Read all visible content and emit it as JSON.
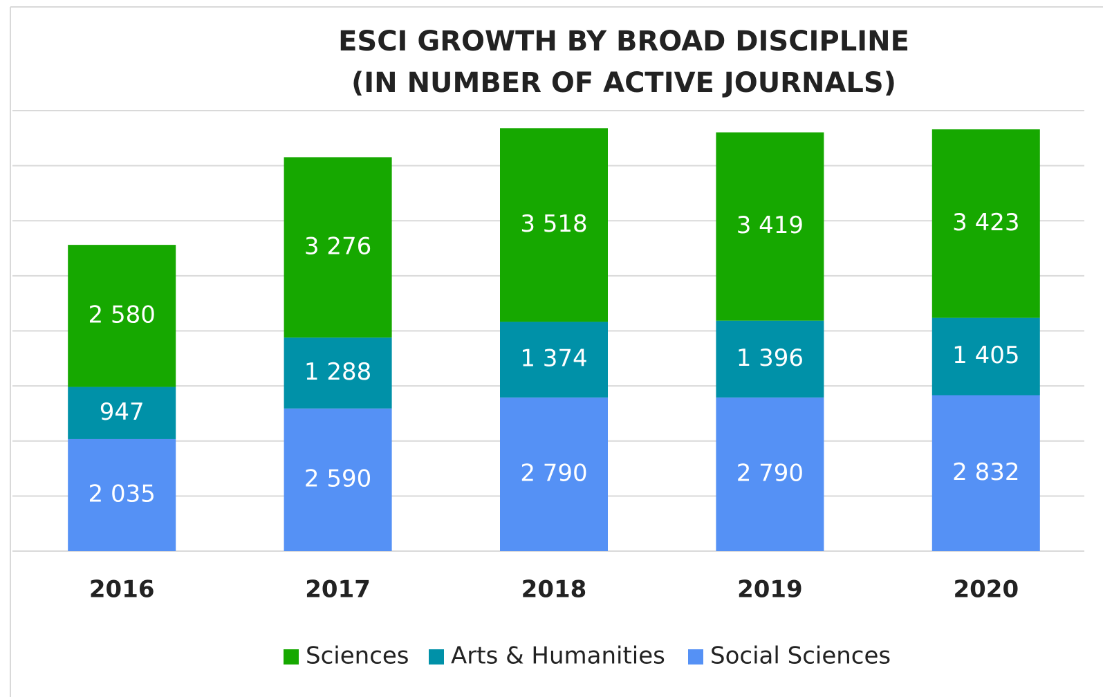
{
  "chart_data": {
    "type": "stacked_bar",
    "title": "ESCI GROWTH BY BROAD DISCIPLINE",
    "subtitle": "(IN NUMBER OF ACTIVE JOURNALS)",
    "categories": [
      "2016",
      "2017",
      "2018",
      "2019",
      "2020"
    ],
    "series": [
      {
        "name": "Sciences",
        "color": "#16a800",
        "values": [
          2580,
          3276,
          3518,
          3419,
          3423
        ],
        "value_labels": [
          "2 580",
          "3 276",
          "3 518",
          "3 419",
          "3 423"
        ]
      },
      {
        "name": "Arts & Humanities",
        "color": "#0091a8",
        "values": [
          947,
          1288,
          1374,
          1396,
          1405
        ],
        "value_labels": [
          "947",
          "1 288",
          "1 374",
          "1 396",
          "1 405"
        ]
      },
      {
        "name": "Social Sciences",
        "color": "#5591f5",
        "values": [
          2035,
          2590,
          2790,
          2790,
          2832
        ],
        "value_labels": [
          "2 035",
          "2 590",
          "2 790",
          "2 790",
          "2 832"
        ]
      }
    ],
    "ylim": [
      0,
      8000
    ],
    "yticks": [
      0,
      1000,
      2000,
      3000,
      4000,
      5000,
      6000,
      7000,
      8000
    ],
    "grid": true,
    "legend": "bottom"
  }
}
